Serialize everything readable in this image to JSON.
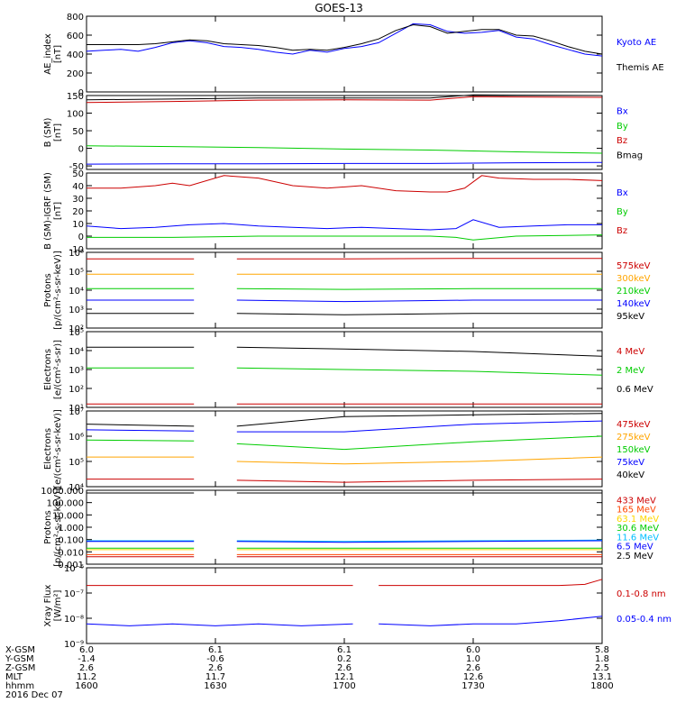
{
  "title": "GOES-13",
  "chart_data": [
    {
      "type": "line",
      "ylabel": "AE_index\n[nT]",
      "yscale": "linear",
      "ylim": [
        0,
        800
      ],
      "yticks": [
        0,
        200,
        400,
        600,
        800
      ],
      "ytick_labels": [
        "0",
        "200",
        "400",
        "600",
        "800"
      ],
      "grid": false,
      "legend_position": "right",
      "series": [
        {
          "name": "Kyoto AE",
          "color": "#0000ff",
          "x": [
            0,
            4,
            8,
            12,
            16,
            20,
            24,
            28,
            32,
            36,
            40,
            44,
            48,
            52,
            56,
            60,
            64,
            68,
            72,
            76,
            80,
            84,
            88,
            92,
            96,
            100,
            104,
            108,
            112,
            116,
            120
          ],
          "values": [
            430,
            440,
            450,
            430,
            470,
            520,
            540,
            520,
            480,
            470,
            450,
            420,
            400,
            440,
            420,
            460,
            480,
            520,
            620,
            720,
            710,
            640,
            620,
            630,
            650,
            580,
            560,
            500,
            450,
            400,
            380
          ]
        },
        {
          "name": "Themis AE",
          "color": "#000000",
          "x": [
            0,
            4,
            8,
            12,
            16,
            20,
            24,
            28,
            32,
            36,
            40,
            44,
            48,
            52,
            56,
            60,
            64,
            68,
            72,
            76,
            80,
            84,
            88,
            92,
            96,
            100,
            104,
            108,
            112,
            116,
            120
          ],
          "values": [
            500,
            500,
            500,
            500,
            510,
            530,
            550,
            540,
            510,
            500,
            490,
            470,
            440,
            450,
            440,
            470,
            510,
            560,
            650,
            710,
            690,
            620,
            640,
            660,
            660,
            600,
            590,
            540,
            480,
            430,
            400
          ]
        }
      ]
    },
    {
      "type": "line",
      "ylabel": "B (SM)\n[nT]",
      "yscale": "linear",
      "ylim": [
        -60,
        150
      ],
      "yticks": [
        -50,
        0,
        50,
        100,
        150
      ],
      "ytick_labels": [
        "-50",
        "0",
        "50",
        "100",
        "150"
      ],
      "grid": false,
      "legend_position": "right",
      "series": [
        {
          "name": "Bx",
          "color": "#0000ff",
          "x": [
            0,
            20,
            40,
            60,
            80,
            100,
            120
          ],
          "values": [
            -45,
            -44,
            -44,
            -43,
            -43,
            -41,
            -40
          ]
        },
        {
          "name": "By",
          "color": "#00cc00",
          "x": [
            0,
            20,
            40,
            60,
            80,
            100,
            120
          ],
          "values": [
            7,
            5,
            2,
            -2,
            -5,
            -10,
            -14
          ]
        },
        {
          "name": "Bz",
          "color": "#cc0000",
          "x": [
            0,
            20,
            40,
            60,
            80,
            90,
            100,
            120
          ],
          "values": [
            130,
            133,
            137,
            138,
            137,
            147,
            146,
            145
          ]
        },
        {
          "name": "Bmag",
          "color": "#000000",
          "x": [
            0,
            20,
            40,
            60,
            80,
            90,
            100,
            120
          ],
          "values": [
            138,
            140,
            143,
            143,
            143,
            152,
            151,
            150
          ]
        }
      ]
    },
    {
      "type": "line",
      "ylabel": "B (SM)-IGRF (SM)\n[nT]",
      "yscale": "linear",
      "ylim": [
        -10,
        50
      ],
      "yticks": [
        -10,
        0,
        10,
        20,
        30,
        40,
        50
      ],
      "ytick_labels": [
        "-10",
        "0",
        "10",
        "20",
        "30",
        "40",
        "50"
      ],
      "grid": false,
      "legend_position": "right",
      "series": [
        {
          "name": "Bx",
          "color": "#0000ff",
          "x": [
            0,
            8,
            16,
            24,
            32,
            40,
            48,
            56,
            64,
            72,
            80,
            86,
            90,
            96,
            104,
            112,
            120
          ],
          "values": [
            8,
            6,
            7,
            9,
            10,
            8,
            7,
            6,
            7,
            6,
            5,
            6,
            13,
            7,
            8,
            9,
            9
          ]
        },
        {
          "name": "By",
          "color": "#00cc00",
          "x": [
            0,
            20,
            40,
            60,
            80,
            86,
            90,
            100,
            120
          ],
          "values": [
            -1,
            -1,
            0,
            0,
            0,
            -1,
            -3,
            0,
            1
          ]
        },
        {
          "name": "Bz",
          "color": "#cc0000",
          "x": [
            0,
            8,
            16,
            20,
            24,
            32,
            40,
            48,
            56,
            64,
            72,
            80,
            84,
            88,
            92,
            96,
            104,
            112,
            120
          ],
          "values": [
            38,
            38,
            40,
            42,
            40,
            48,
            46,
            40,
            38,
            40,
            36,
            35,
            35,
            38,
            48,
            46,
            45,
            45,
            44
          ]
        }
      ]
    },
    {
      "type": "line",
      "ylabel": "Protons\n[p/(cm²-s-sr-keV)]",
      "yscale": "log",
      "ylim": [
        100,
        1000000
      ],
      "yticks": [
        100,
        1000,
        10000,
        100000,
        1000000
      ],
      "ytick_labels": [
        "10²",
        "10³",
        "10⁴",
        "10⁵",
        "10⁶"
      ],
      "grid": false,
      "legend_position": "right",
      "series": [
        {
          "name": "575keV",
          "color": "#cc0000",
          "x": [
            0,
            25,
            null,
            35,
            60,
            90,
            120
          ],
          "values": [
            450000,
            450000,
            null,
            450000,
            450000,
            480000,
            480000
          ]
        },
        {
          "name": "300keV",
          "color": "#ffa500",
          "x": [
            0,
            25,
            null,
            35,
            60,
            90,
            120
          ],
          "values": [
            70000,
            70000,
            null,
            70000,
            70000,
            70000,
            70000
          ]
        },
        {
          "name": "210keV",
          "color": "#00cc00",
          "x": [
            0,
            25,
            null,
            35,
            60,
            90,
            120
          ],
          "values": [
            12000,
            12000,
            null,
            12000,
            11000,
            12000,
            12000
          ]
        },
        {
          "name": "140keV",
          "color": "#0000ff",
          "x": [
            0,
            25,
            null,
            35,
            60,
            90,
            120
          ],
          "values": [
            3000,
            3000,
            null,
            3000,
            2500,
            3000,
            3000
          ]
        },
        {
          "name": "95keV",
          "color": "#000000",
          "x": [
            0,
            25,
            null,
            35,
            60,
            90,
            120
          ],
          "values": [
            600,
            600,
            null,
            600,
            500,
            600,
            600
          ]
        }
      ]
    },
    {
      "type": "line",
      "ylabel": "Electrons\n[e/(cm²-s-sr)]",
      "yscale": "log",
      "ylim": [
        10,
        100000
      ],
      "yticks": [
        10,
        100,
        1000,
        10000,
        100000
      ],
      "ytick_labels": [
        "10¹",
        "10²",
        "10³",
        "10⁴",
        "10⁵"
      ],
      "grid": false,
      "legend_position": "right",
      "series": [
        {
          "name": "4 MeV",
          "color": "#cc0000",
          "x": [
            0,
            25,
            null,
            35,
            60,
            90,
            120
          ],
          "values": [
            15,
            15,
            null,
            15,
            15,
            15,
            15
          ]
        },
        {
          "name": "2 MeV",
          "color": "#00cc00",
          "x": [
            0,
            25,
            null,
            35,
            60,
            90,
            120
          ],
          "values": [
            1200,
            1200,
            null,
            1200,
            1000,
            800,
            500
          ]
        },
        {
          "name": "0.6 MeV",
          "color": "#000000",
          "x": [
            0,
            25,
            null,
            35,
            60,
            90,
            120
          ],
          "values": [
            15000,
            15000,
            null,
            15000,
            12000,
            9000,
            5000
          ]
        }
      ]
    },
    {
      "type": "line",
      "ylabel": "Electrons\n[e/(cm²-s-sr-keV)]",
      "yscale": "log",
      "ylim": [
        10000,
        10000000
      ],
      "yticks": [
        10000,
        100000,
        1000000,
        10000000
      ],
      "ytick_labels": [
        "10⁴",
        "10⁵",
        "10⁶",
        "10⁷"
      ],
      "grid": false,
      "legend_position": "right",
      "series": [
        {
          "name": "475keV",
          "color": "#cc0000",
          "x": [
            0,
            25,
            null,
            35,
            60,
            90,
            120
          ],
          "values": [
            20000,
            20000,
            null,
            18000,
            15000,
            18000,
            20000
          ]
        },
        {
          "name": "275keV",
          "color": "#ffa500",
          "x": [
            0,
            25,
            null,
            35,
            60,
            90,
            120
          ],
          "values": [
            150000,
            150000,
            null,
            100000,
            80000,
            100000,
            150000
          ]
        },
        {
          "name": "150keV",
          "color": "#00cc00",
          "x": [
            0,
            25,
            null,
            35,
            60,
            90,
            120
          ],
          "values": [
            700000,
            650000,
            null,
            500000,
            300000,
            600000,
            1000000
          ]
        },
        {
          "name": "75keV",
          "color": "#0000ff",
          "x": [
            0,
            25,
            null,
            35,
            60,
            90,
            120
          ],
          "values": [
            1800000,
            1600000,
            null,
            1500000,
            1500000,
            3000000,
            4000000
          ]
        },
        {
          "name": "40keV",
          "color": "#000000",
          "x": [
            0,
            25,
            null,
            35,
            60,
            90,
            120
          ],
          "values": [
            3000000,
            2500000,
            null,
            2500000,
            6000000,
            7000000,
            8000000
          ]
        }
      ]
    },
    {
      "type": "line",
      "ylabel": "Protons\n[p/(cm²-s-sr-keV)]",
      "yscale": "log",
      "ylim": [
        0.001,
        1000
      ],
      "yticks": [
        0.001,
        0.01,
        0.1,
        1,
        10,
        100,
        1000
      ],
      "ytick_labels": [
        "0.001",
        "0.010",
        "0.100",
        "1.000",
        "10.000",
        "100.000",
        "1000.000"
      ],
      "grid": false,
      "legend_position": "right",
      "series": [
        {
          "name": "433 MeV",
          "color": "#cc0000",
          "x": [
            0,
            25,
            null,
            35,
            60,
            90,
            120
          ],
          "values": [
            0.004,
            0.004,
            null,
            0.004,
            0.004,
            0.004,
            0.004
          ]
        },
        {
          "name": "165 MeV",
          "color": "#ff4500",
          "x": [
            0,
            25,
            null,
            35,
            60,
            90,
            120
          ],
          "values": [
            0.006,
            0.006,
            null,
            0.006,
            0.006,
            0.006,
            0.006
          ]
        },
        {
          "name": "63.1 MeV",
          "color": "#ffd700",
          "x": [
            0,
            25,
            null,
            35,
            60,
            90,
            120
          ],
          "values": [
            0.015,
            0.015,
            null,
            0.015,
            0.015,
            0.015,
            0.015
          ]
        },
        {
          "name": "30.6 MeV",
          "color": "#00cc00",
          "x": [
            0,
            25,
            null,
            35,
            60,
            90,
            120
          ],
          "values": [
            0.02,
            0.02,
            null,
            0.02,
            0.02,
            0.02,
            0.02
          ]
        },
        {
          "name": "11.6 MeV",
          "color": "#00bfff",
          "x": [
            0,
            25,
            null,
            35,
            60,
            90,
            120
          ],
          "values": [
            0.08,
            0.08,
            null,
            0.08,
            0.07,
            0.08,
            0.09
          ]
        },
        {
          "name": "6.5 MeV",
          "color": "#0000ff",
          "x": [
            0,
            25,
            null,
            35,
            60,
            90,
            120
          ],
          "values": [
            0.07,
            0.07,
            null,
            0.07,
            0.06,
            0.07,
            0.08
          ]
        },
        {
          "name": "2.5 MeV",
          "color": "#000000",
          "x": [
            0,
            25,
            null,
            35,
            60,
            90,
            120
          ],
          "values": [
            600,
            600,
            null,
            600,
            600,
            600,
            600
          ]
        }
      ]
    },
    {
      "type": "line",
      "ylabel": "Xray Flux\n[W/m²]",
      "yscale": "log",
      "ylim": [
        1e-09,
        1e-06
      ],
      "yticks": [
        1e-09,
        1e-08,
        1e-07,
        1e-06
      ],
      "ytick_labels": [
        "10⁻⁹",
        "10⁻⁸",
        "10⁻⁷",
        "10⁻⁶"
      ],
      "grid": false,
      "legend_position": "right",
      "series": [
        {
          "name": "0.1-0.8 nm",
          "color": "#cc0000",
          "x": [
            0,
            20,
            40,
            62,
            null,
            68,
            90,
            110,
            116,
            120
          ],
          "values": [
            2e-07,
            2e-07,
            2e-07,
            2e-07,
            null,
            2e-07,
            2e-07,
            2e-07,
            2.2e-07,
            3.5e-07
          ]
        },
        {
          "name": "0.05-0.4 nm",
          "color": "#0000ff",
          "x": [
            0,
            10,
            20,
            30,
            40,
            50,
            62,
            null,
            68,
            80,
            90,
            100,
            110,
            120
          ],
          "values": [
            6e-09,
            5e-09,
            6e-09,
            5e-09,
            6e-09,
            5e-09,
            6e-09,
            null,
            6e-09,
            5e-09,
            6e-09,
            6e-09,
            8e-09,
            1.2e-08
          ]
        }
      ]
    }
  ],
  "xaxis_labels": {
    "row_labels": [
      "X-GSM",
      "Y-GSM",
      "Z-GSM",
      "MLT",
      "hhmm",
      "2016 Dec 07"
    ],
    "columns": [
      {
        "x": 0,
        "values": [
          "6.0",
          "-1.4",
          "2.6",
          "11.2",
          "1600"
        ]
      },
      {
        "x": 30,
        "values": [
          "6.1",
          "-0.6",
          "2.6",
          "11.7",
          "1630"
        ]
      },
      {
        "x": 60,
        "values": [
          "6.1",
          "0.2",
          "2.6",
          "12.1",
          "1700"
        ]
      },
      {
        "x": 90,
        "values": [
          "6.0",
          "1.0",
          "2.6",
          "12.6",
          "1730"
        ]
      },
      {
        "x": 120,
        "values": [
          "5.8",
          "1.8",
          "2.5",
          "13.1",
          "1800"
        ]
      }
    ]
  }
}
